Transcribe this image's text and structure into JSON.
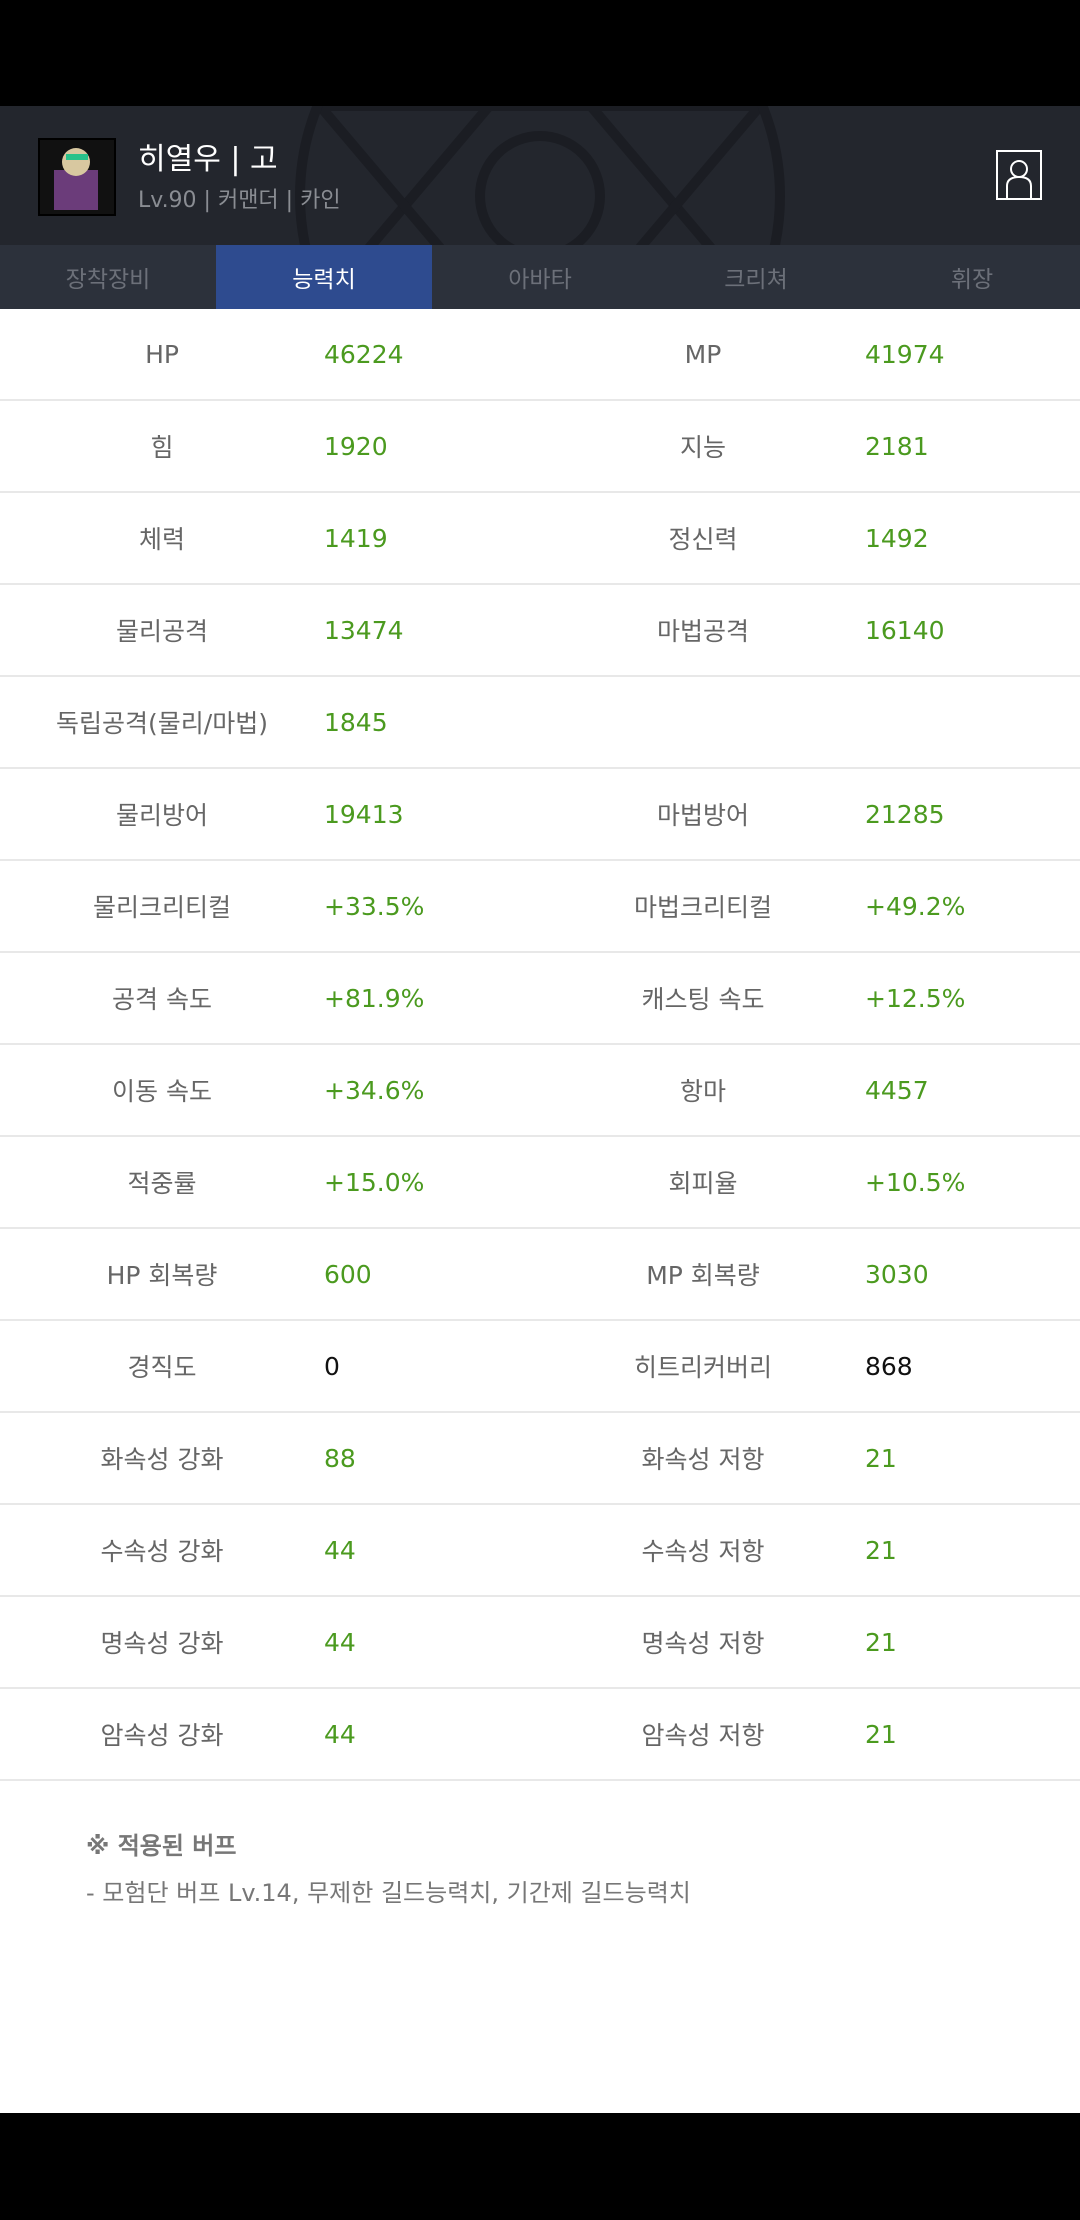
{
  "header": {
    "name": "히열우 | 고",
    "subtitle": "Lv.90 | 커맨더 | 카인"
  },
  "tabs": [
    {
      "label": "장착장비",
      "active": false
    },
    {
      "label": "능력치",
      "active": true
    },
    {
      "label": "아바타",
      "active": false
    },
    {
      "label": "크리쳐",
      "active": false
    },
    {
      "label": "휘장",
      "active": false
    }
  ],
  "stats": [
    {
      "l1": "HP",
      "v1": "46224",
      "l2": "MP",
      "v2": "41974"
    },
    {
      "l1": "힘",
      "v1": "1920",
      "l2": "지능",
      "v2": "2181"
    },
    {
      "l1": "체력",
      "v1": "1419",
      "l2": "정신력",
      "v2": "1492"
    },
    {
      "l1": "물리공격",
      "v1": "13474",
      "l2": "마법공격",
      "v2": "16140"
    },
    {
      "l1": "독립공격(물리/마법)",
      "v1": "1845",
      "l2": "",
      "v2": ""
    },
    {
      "l1": "물리방어",
      "v1": "19413",
      "l2": "마법방어",
      "v2": "21285"
    },
    {
      "l1": "물리크리티컬",
      "v1": "+33.5%",
      "l2": "마법크리티컬",
      "v2": "+49.2%"
    },
    {
      "l1": "공격 속도",
      "v1": "+81.9%",
      "l2": "캐스팅 속도",
      "v2": "+12.5%"
    },
    {
      "l1": "이동 속도",
      "v1": "+34.6%",
      "l2": "항마",
      "v2": "4457"
    },
    {
      "l1": "적중률",
      "v1": "+15.0%",
      "l2": "회피율",
      "v2": "+10.5%"
    },
    {
      "l1": "HP 회복량",
      "v1": "600",
      "l2": "MP 회복량",
      "v2": "3030"
    },
    {
      "l1": "경직도",
      "v1": "0",
      "l2": "히트리커버리",
      "v2": "868",
      "plain": true
    },
    {
      "l1": "화속성 강화",
      "v1": "88",
      "l2": "화속성 저항",
      "v2": "21"
    },
    {
      "l1": "수속성 강화",
      "v1": "44",
      "l2": "수속성 저항",
      "v2": "21"
    },
    {
      "l1": "명속성 강화",
      "v1": "44",
      "l2": "명속성 저항",
      "v2": "21"
    },
    {
      "l1": "암속성 강화",
      "v1": "44",
      "l2": "암속성 저항",
      "v2": "21"
    }
  ],
  "buffs": {
    "title": "※ 적용된 버프",
    "desc": "- 모험단 버프 Lv.14, 무제한 길드능력치, 기간제 길드능력치"
  },
  "colors": {
    "value_green": "#4b9a1f",
    "active_tab": "#2e4b8f"
  }
}
